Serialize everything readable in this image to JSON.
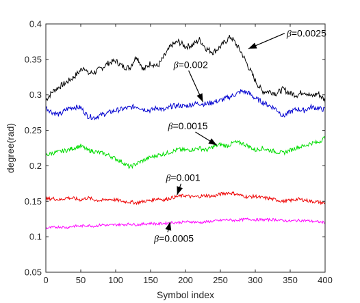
{
  "chart_data": {
    "type": "line",
    "title": "",
    "xlabel": "Symbol index",
    "ylabel": "degree(rad)",
    "xlim": [
      0,
      400
    ],
    "ylim": [
      0.05,
      0.4
    ],
    "xticks": [
      0,
      50,
      100,
      150,
      200,
      250,
      300,
      350,
      400
    ],
    "yticks": [
      0.05,
      0.1,
      0.15,
      0.2,
      0.25,
      0.3,
      0.35,
      0.4
    ],
    "grid": false,
    "legend": "none",
    "series": [
      {
        "color": "#000000",
        "annotation": "β=0.0025",
        "x": [
          0,
          10,
          20,
          30,
          40,
          50,
          55,
          60,
          70,
          80,
          90,
          100,
          110,
          120,
          130,
          140,
          150,
          160,
          170,
          180,
          190,
          200,
          210,
          220,
          230,
          240,
          250,
          260,
          265,
          270,
          280,
          290,
          300,
          310,
          320,
          330,
          340,
          350,
          360,
          370,
          380,
          390,
          400
        ],
        "y": [
          0.293,
          0.305,
          0.312,
          0.318,
          0.325,
          0.335,
          0.34,
          0.33,
          0.332,
          0.338,
          0.345,
          0.348,
          0.34,
          0.338,
          0.355,
          0.335,
          0.345,
          0.34,
          0.355,
          0.37,
          0.375,
          0.368,
          0.37,
          0.378,
          0.365,
          0.36,
          0.368,
          0.378,
          0.382,
          0.375,
          0.36,
          0.34,
          0.32,
          0.305,
          0.305,
          0.302,
          0.308,
          0.302,
          0.3,
          0.305,
          0.298,
          0.302,
          0.292
        ]
      },
      {
        "color": "#0000d0",
        "annotation": "β=0.002",
        "x": [
          0,
          10,
          20,
          30,
          40,
          50,
          60,
          70,
          80,
          90,
          100,
          110,
          120,
          130,
          140,
          150,
          160,
          170,
          180,
          190,
          200,
          210,
          220,
          230,
          240,
          250,
          260,
          270,
          280,
          290,
          300,
          310,
          320,
          330,
          340,
          350,
          360,
          370,
          380,
          390,
          400
        ],
        "y": [
          0.282,
          0.275,
          0.272,
          0.28,
          0.283,
          0.282,
          0.27,
          0.268,
          0.272,
          0.275,
          0.278,
          0.28,
          0.282,
          0.284,
          0.28,
          0.278,
          0.282,
          0.278,
          0.284,
          0.285,
          0.284,
          0.287,
          0.288,
          0.287,
          0.29,
          0.292,
          0.296,
          0.3,
          0.305,
          0.303,
          0.295,
          0.29,
          0.285,
          0.28,
          0.27,
          0.276,
          0.28,
          0.278,
          0.283,
          0.281,
          0.279
        ]
      },
      {
        "color": "#00dd00",
        "annotation": "β=0.0015",
        "x": [
          0,
          10,
          20,
          30,
          40,
          50,
          60,
          70,
          80,
          90,
          100,
          110,
          120,
          130,
          140,
          150,
          160,
          170,
          180,
          190,
          200,
          210,
          220,
          230,
          240,
          250,
          260,
          270,
          280,
          290,
          300,
          310,
          320,
          330,
          340,
          350,
          360,
          370,
          380,
          390,
          400
        ],
        "y": [
          0.215,
          0.218,
          0.22,
          0.222,
          0.225,
          0.228,
          0.222,
          0.22,
          0.218,
          0.215,
          0.21,
          0.205,
          0.198,
          0.203,
          0.208,
          0.212,
          0.215,
          0.217,
          0.22,
          0.223,
          0.222,
          0.223,
          0.225,
          0.222,
          0.227,
          0.23,
          0.228,
          0.233,
          0.232,
          0.228,
          0.222,
          0.225,
          0.222,
          0.22,
          0.218,
          0.222,
          0.226,
          0.228,
          0.232,
          0.233,
          0.24
        ]
      },
      {
        "color": "#ee0000",
        "annotation": "β=0.001",
        "x": [
          0,
          10,
          20,
          30,
          40,
          50,
          60,
          70,
          80,
          90,
          100,
          110,
          120,
          130,
          140,
          150,
          160,
          170,
          180,
          190,
          200,
          210,
          220,
          230,
          240,
          250,
          260,
          270,
          280,
          290,
          300,
          310,
          320,
          330,
          340,
          350,
          360,
          370,
          380,
          390,
          400
        ],
        "y": [
          0.153,
          0.154,
          0.152,
          0.155,
          0.154,
          0.152,
          0.155,
          0.152,
          0.151,
          0.153,
          0.152,
          0.15,
          0.149,
          0.148,
          0.15,
          0.151,
          0.154,
          0.152,
          0.155,
          0.157,
          0.158,
          0.156,
          0.157,
          0.158,
          0.157,
          0.16,
          0.162,
          0.161,
          0.158,
          0.156,
          0.157,
          0.155,
          0.154,
          0.152,
          0.15,
          0.151,
          0.153,
          0.152,
          0.15,
          0.149,
          0.147
        ]
      },
      {
        "color": "#ff00ff",
        "annotation": "β=0.0005",
        "x": [
          0,
          10,
          20,
          30,
          40,
          50,
          60,
          70,
          80,
          90,
          100,
          110,
          120,
          130,
          140,
          150,
          160,
          170,
          180,
          190,
          200,
          210,
          220,
          230,
          240,
          250,
          260,
          270,
          280,
          290,
          300,
          310,
          320,
          330,
          340,
          350,
          360,
          370,
          380,
          390,
          400
        ],
        "y": [
          0.112,
          0.113,
          0.114,
          0.113,
          0.115,
          0.115,
          0.116,
          0.115,
          0.117,
          0.116,
          0.117,
          0.117,
          0.118,
          0.117,
          0.118,
          0.119,
          0.118,
          0.119,
          0.12,
          0.12,
          0.121,
          0.121,
          0.12,
          0.121,
          0.122,
          0.123,
          0.124,
          0.123,
          0.124,
          0.125,
          0.124,
          0.124,
          0.124,
          0.124,
          0.123,
          0.122,
          0.123,
          0.123,
          0.122,
          0.121,
          0.12
        ]
      }
    ],
    "annotations": [
      {
        "text": "β=0.0025",
        "greek": "β",
        "rest": "=0.0025",
        "text_at": [
          345,
          0.382
        ],
        "arrow_to": [
          290,
          0.365
        ]
      },
      {
        "text": "β=0.002",
        "greek": "β",
        "rest": "=0.002",
        "text_at": [
          183,
          0.338
        ],
        "arrow_to": [
          225,
          0.29
        ]
      },
      {
        "text": "β=0.0015",
        "greek": "β",
        "rest": "=0.0015",
        "text_at": [
          175,
          0.2515
        ],
        "arrow_to": [
          245,
          0.229
        ]
      },
      {
        "text": "β=0.001",
        "greek": "β",
        "rest": "=0.001",
        "text_at": [
          172,
          0.1785
        ],
        "arrow_to": [
          188,
          0.159
        ]
      },
      {
        "text": "β=0.0005",
        "greek": "β",
        "rest": "=0.0005",
        "text_at": [
          155,
          0.093
        ],
        "arrow_to": [
          178,
          0.121
        ]
      }
    ]
  }
}
